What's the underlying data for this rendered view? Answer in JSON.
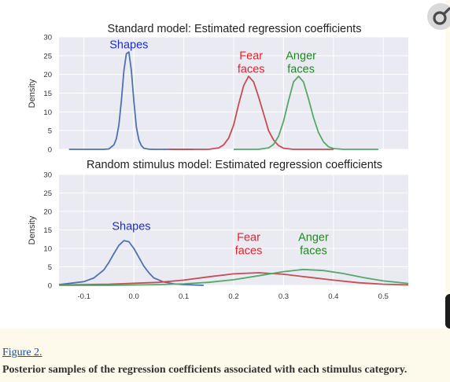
{
  "figure": {
    "link_text": "Figure 2.",
    "caption": "Posterior samples of the regression coefficients associated with each stimulus category."
  },
  "corner_icon": "hypatia-icon",
  "chart_data": [
    {
      "type": "line",
      "title": "Standard model: Estimated regression coefficients",
      "ylabel": "Density",
      "ylim": [
        0,
        30
      ],
      "yticks": [
        "0",
        "5",
        "10",
        "15",
        "20",
        "25",
        "30"
      ],
      "xlim": [
        -0.15,
        0.55
      ],
      "grid": true,
      "series": [
        {
          "name": "Shapes",
          "label_lines": [
            "Shapes"
          ],
          "color": "#4c72b0",
          "label_color": "#1a2fc9",
          "label_anchor": [
            -0.01,
            27
          ],
          "x": [
            -0.13,
            -0.06,
            -0.05,
            -0.04,
            -0.035,
            -0.03,
            -0.025,
            -0.02,
            -0.015,
            -0.01,
            -0.005,
            0.0,
            0.005,
            0.01,
            0.015,
            0.02,
            0.03,
            0.04,
            0.08,
            0.12
          ],
          "y": [
            0,
            0,
            0.1,
            1.2,
            2.8,
            6.5,
            13,
            21,
            25.5,
            26,
            21,
            13,
            6,
            2.5,
            1,
            0.3,
            0.05,
            0,
            0,
            0
          ]
        },
        {
          "name": "Fear faces",
          "label_lines": [
            "Fear",
            "faces"
          ],
          "color": "#c44e52",
          "label_color": "#e8202a",
          "label_anchor": [
            0.235,
            24
          ],
          "x": [
            0.07,
            0.15,
            0.17,
            0.18,
            0.19,
            0.2,
            0.21,
            0.22,
            0.23,
            0.24,
            0.25,
            0.26,
            0.27,
            0.28,
            0.29,
            0.3,
            0.32,
            0.4
          ],
          "y": [
            0,
            0,
            0.4,
            1.2,
            3,
            6.5,
            12,
            17,
            19.5,
            18,
            14,
            9.5,
            5,
            2.5,
            1,
            0.3,
            0,
            0
          ]
        },
        {
          "name": "Anger faces",
          "label_lines": [
            "Anger",
            "faces"
          ],
          "color": "#55a868",
          "label_color": "#1e8a1e",
          "label_anchor": [
            0.335,
            24
          ],
          "x": [
            0.2,
            0.25,
            0.27,
            0.28,
            0.29,
            0.3,
            0.31,
            0.32,
            0.33,
            0.34,
            0.35,
            0.36,
            0.37,
            0.38,
            0.39,
            0.4,
            0.42,
            0.49
          ],
          "y": [
            0,
            0,
            0.4,
            1.3,
            3.5,
            7.5,
            13,
            18,
            19.5,
            18,
            13.5,
            8.5,
            4.5,
            2,
            0.7,
            0.2,
            0,
            0
          ]
        }
      ]
    },
    {
      "type": "line",
      "title": "Random stimulus model: Estimated regression coefficients",
      "ylabel": "Density",
      "ylim": [
        0,
        30
      ],
      "yticks": [
        "0",
        "5",
        "10",
        "15",
        "20",
        "25",
        "30"
      ],
      "xlim": [
        -0.15,
        0.55
      ],
      "xticks": [
        -0.1,
        0.0,
        0.1,
        0.2,
        0.3,
        0.4,
        0.5
      ],
      "xtick_labels": [
        "-0.1",
        "0.0",
        "0.1",
        "0.2",
        "0.3",
        "0.4",
        "0.5"
      ],
      "grid": true,
      "series": [
        {
          "name": "Shapes",
          "label_lines": [
            "Shapes"
          ],
          "color": "#4c72b0",
          "label_color": "#1a2fc9",
          "label_anchor": [
            -0.005,
            15
          ],
          "x": [
            -0.15,
            -0.1,
            -0.08,
            -0.06,
            -0.05,
            -0.04,
            -0.03,
            -0.02,
            -0.01,
            0.0,
            0.01,
            0.02,
            0.03,
            0.04,
            0.06,
            0.08,
            0.1,
            0.14
          ],
          "y": [
            0.2,
            1.0,
            2.0,
            4.2,
            6.2,
            8.6,
            10.8,
            12.1,
            11.8,
            10.0,
            7.6,
            5.2,
            3.4,
            2.0,
            0.9,
            0.4,
            0.2,
            0
          ]
        },
        {
          "name": "Fear faces",
          "label_lines": [
            "Fear",
            "faces"
          ],
          "color": "#c44e52",
          "label_color": "#e8202a",
          "label_anchor": [
            0.23,
            12
          ],
          "x": [
            -0.15,
            -0.05,
            0.05,
            0.1,
            0.15,
            0.2,
            0.25,
            0.3,
            0.35,
            0.4,
            0.45,
            0.5,
            0.55
          ],
          "y": [
            0.1,
            0.3,
            0.8,
            1.4,
            2.3,
            3.1,
            3.4,
            3.0,
            2.2,
            1.4,
            0.7,
            0.3,
            0.1
          ]
        },
        {
          "name": "Anger faces",
          "label_lines": [
            "Anger",
            "faces"
          ],
          "color": "#55a868",
          "label_color": "#1e8a1e",
          "label_anchor": [
            0.36,
            12
          ],
          "x": [
            -0.15,
            -0.05,
            0.05,
            0.1,
            0.15,
            0.2,
            0.25,
            0.3,
            0.34,
            0.38,
            0.42,
            0.46,
            0.5,
            0.55
          ],
          "y": [
            0,
            0,
            0.2,
            0.4,
            0.8,
            1.5,
            2.6,
            3.7,
            4.3,
            4.0,
            3.2,
            2.1,
            1.2,
            0.5
          ]
        }
      ]
    }
  ]
}
